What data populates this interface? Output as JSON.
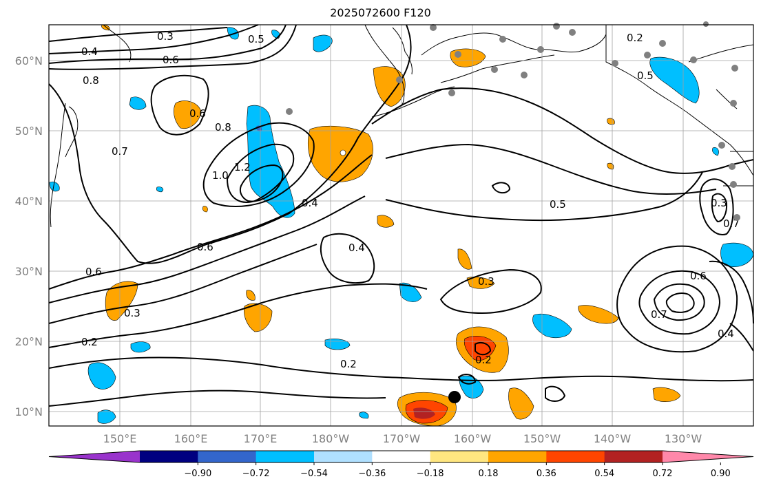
{
  "title": "2025072600 F120",
  "map": {
    "lon_labels": [
      "150°E",
      "160°E",
      "170°E",
      "180°W",
      "170°W",
      "160°W",
      "150°W",
      "140°W",
      "130°W"
    ],
    "lat_labels": [
      "60°N",
      "50°N",
      "40°N",
      "30°N",
      "20°N",
      "10°N"
    ],
    "contour_labels": [
      "0.3",
      "0.4",
      "0.6",
      "0.8",
      "0.5",
      "0.6",
      "0.8",
      "0.7",
      "1.0",
      "1.2",
      "0.4",
      "0.6",
      "0.4",
      "0.6",
      "0.3",
      "0.2",
      "0.3",
      "0.2",
      "0.2",
      "0.5",
      "0.2",
      "0.5",
      "0.3",
      "0.7",
      "0.6",
      "0.7",
      "0.4"
    ]
  },
  "colorbar": {
    "labels": [
      "−0.90",
      "−0.72",
      "−0.54",
      "−0.36",
      "−0.18",
      "0.18",
      "0.36",
      "0.54",
      "0.72",
      "0.90"
    ],
    "colors": [
      "#9933cc",
      "#000080",
      "#3366cc",
      "#00bfff",
      "#b0e0ff",
      "#ffffff",
      "#ffe680",
      "#ffa500",
      "#ff4500",
      "#b22222",
      "#ff88aa"
    ]
  },
  "colors": {
    "land": "#000000",
    "grid": "#a0a0a0",
    "station": "#808080"
  }
}
